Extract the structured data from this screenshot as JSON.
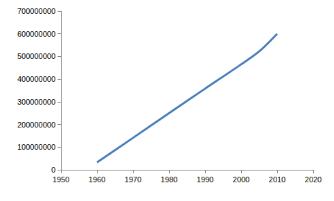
{
  "chart_data": {
    "type": "line",
    "x": [
      1960,
      1970,
      1980,
      1990,
      2000,
      2005,
      2010
    ],
    "values": [
      33000000,
      141000000,
      250000000,
      358000000,
      465000000,
      522000000,
      600000000
    ],
    "color": "#4a7ebb",
    "xlim": [
      1950,
      2020
    ],
    "xticks": [
      1950,
      1960,
      1970,
      1980,
      1990,
      2000,
      2010,
      2020
    ],
    "ylim": [
      0,
      700000000
    ],
    "yticks": [
      0,
      100000000,
      200000000,
      300000000,
      400000000,
      500000000,
      600000000,
      700000000
    ],
    "grid": false
  }
}
